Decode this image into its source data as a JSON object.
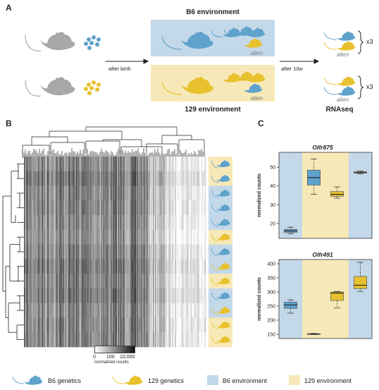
{
  "panels": {
    "a": "A",
    "b": "B",
    "c": "C"
  },
  "panel_a": {
    "b6_env_title": "B6 environment",
    "env129_title": "129 environment",
    "after_birth": "after birth",
    "after_10w": "after 10w",
    "alien": "alien",
    "x3": "x3",
    "rnaseq": "RNAseq"
  },
  "heatmap": {
    "legend_ticks": [
      "0",
      "100",
      "10,000"
    ],
    "legend_title": "normalized counts",
    "row_strip": [
      {
        "genetics": "b6",
        "env": "129"
      },
      {
        "genetics": "b6",
        "env": "129"
      },
      {
        "genetics": "b6",
        "env": "b6"
      },
      {
        "genetics": "b6",
        "env": "b6"
      },
      {
        "genetics": "b6",
        "env": "b6"
      },
      {
        "genetics": "129",
        "env": "129"
      },
      {
        "genetics": "b6",
        "env": "b6"
      },
      {
        "genetics": "129",
        "env": "b6"
      },
      {
        "genetics": "129",
        "env": "129"
      },
      {
        "genetics": "b6",
        "env": "b6"
      },
      {
        "genetics": "129",
        "env": "b6"
      },
      {
        "genetics": "129",
        "env": "129"
      },
      {
        "genetics": "129",
        "env": "129"
      }
    ]
  },
  "chart_data": [
    {
      "type": "boxplot",
      "title": "Olfr875",
      "ylabel": "normalized counts",
      "ylim": [
        12,
        58
      ],
      "yticks": [
        20,
        30,
        40,
        50
      ],
      "groups": [
        {
          "genetics": "B6 genetics",
          "environment": "B6 environment",
          "min": 14.5,
          "q1": 15.2,
          "median": 16.0,
          "q3": 16.8,
          "max": 18.0
        },
        {
          "genetics": "B6 genetics",
          "environment": "129 environment",
          "min": 35.5,
          "q1": 40.5,
          "median": 44.5,
          "q3": 48.5,
          "max": 54.5
        },
        {
          "genetics": "129 genetics",
          "environment": "129 environment",
          "min": 33.5,
          "q1": 34.5,
          "median": 35.5,
          "q3": 37.0,
          "max": 39.5
        },
        {
          "genetics": "129 genetics",
          "environment": "B6 environment",
          "min": 46.5,
          "q1": 46.9,
          "median": 47.3,
          "q3": 47.6,
          "max": 48.0
        }
      ]
    },
    {
      "type": "boxplot",
      "title": "Olfr491",
      "ylabel": "normalized counts",
      "ylim": [
        135,
        415
      ],
      "yticks": [
        150,
        200,
        250,
        300,
        350,
        400
      ],
      "groups": [
        {
          "genetics": "B6 genetics",
          "environment": "B6 environment",
          "min": 225,
          "q1": 242,
          "median": 254,
          "q3": 264,
          "max": 272
        },
        {
          "genetics": "B6 genetics",
          "environment": "129 environment",
          "min": 149,
          "q1": 150,
          "median": 151,
          "q3": 152,
          "max": 153
        },
        {
          "genetics": "129 genetics",
          "environment": "129 environment",
          "min": 243,
          "q1": 270,
          "median": 296,
          "q3": 300,
          "max": 302
        },
        {
          "genetics": "129 genetics",
          "environment": "B6 environment",
          "min": 302,
          "q1": 312,
          "median": 324,
          "q3": 355,
          "max": 405
        }
      ]
    }
  ],
  "legend": {
    "b6_genetics": "B6 genetics",
    "g129_genetics": "129 genetics",
    "b6_environment": "B6 environment",
    "env129_environment": "129 environment"
  },
  "colors": {
    "b6": "#5fa2cc",
    "g129": "#e8c12f",
    "b6_env_bg": "#c3d8e9",
    "env129_bg": "#f7e9b7",
    "gray_mouse": "#a8a8a8"
  }
}
